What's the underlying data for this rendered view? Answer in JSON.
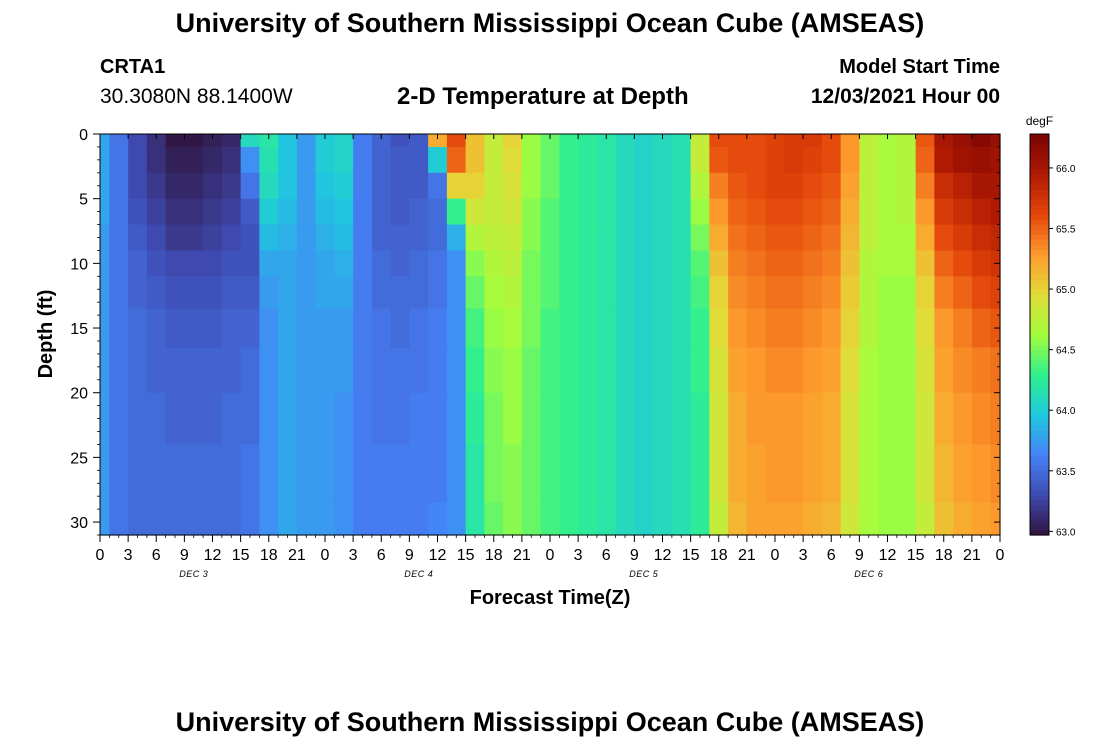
{
  "header": {
    "title": "University of Southern Mississippi Ocean Cube (AMSEAS)",
    "station_id": "CRTA1",
    "station_coords": "30.3080N  88.1400W",
    "subtitle": "2-D Temperature at Depth",
    "model_start_label": "Model Start Time",
    "model_start_value": "12/03/2021 Hour 00"
  },
  "footer": {
    "title": "University of Southern Mississippi Ocean Cube (AMSEAS)"
  },
  "colors": {
    "colormap": [
      "#30123b",
      "#3e4ab0",
      "#4682f8",
      "#1fc8de",
      "#2ff08e",
      "#a3fd3d",
      "#e2dc38",
      "#fe9b2d",
      "#e4460a",
      "#b01a03",
      "#7a0403"
    ]
  },
  "chart_data": {
    "type": "heatmap",
    "xlabel": "Forecast Time(Z)",
    "ylabel": "Depth (ft)",
    "colorbar_unit": "degF",
    "x_tick_labels": [
      "0",
      "3",
      "6",
      "9",
      "12",
      "15",
      "18",
      "21",
      "0",
      "3",
      "6",
      "9",
      "12",
      "15",
      "18",
      "21",
      "0",
      "3",
      "6",
      "9",
      "12",
      "15",
      "18",
      "21",
      "0",
      "3",
      "6",
      "9",
      "12",
      "15",
      "18",
      "21",
      "0"
    ],
    "day_labels": [
      "DEC 3",
      "DEC 4",
      "DEC 5",
      "DEC 6"
    ],
    "y_ticks": [
      0,
      5,
      10,
      15,
      20,
      25,
      30
    ],
    "ylim": [
      31,
      0
    ],
    "x_hours": [
      0,
      96
    ],
    "colorbar_ticks": [
      63.0,
      63.5,
      64.0,
      64.5,
      65.0,
      65.5,
      66.0
    ],
    "zlim": [
      62.97,
      66.28
    ],
    "depth_levels_ft": [
      0,
      2,
      4,
      6,
      8,
      10,
      12,
      15,
      18,
      22,
      26,
      31
    ],
    "time_hours": [
      0,
      2,
      4,
      6,
      8,
      10,
      12,
      14,
      16,
      18,
      20,
      22,
      24,
      26,
      28,
      30,
      32,
      34,
      36,
      38,
      40,
      42,
      44,
      46,
      48,
      50,
      52,
      54,
      56,
      58,
      60,
      62,
      64,
      66,
      68,
      70,
      72,
      74,
      76,
      78,
      80,
      82,
      84,
      86,
      88,
      90,
      92,
      94,
      96
    ],
    "temperature_degF": [
      [
        63.8,
        63.55,
        63.3,
        63.15,
        63.0,
        63.0,
        63.05,
        63.1,
        64.1,
        64.2,
        63.95,
        63.75,
        64.0,
        64.05,
        63.6,
        63.45,
        63.35,
        63.4,
        65.2,
        65.6,
        65.1,
        64.8,
        65.0,
        64.6,
        64.45,
        64.3,
        64.25,
        64.2,
        64.1,
        64.05,
        64.1,
        64.15,
        64.8,
        65.6,
        65.6,
        65.6,
        65.65,
        65.7,
        65.7,
        65.6,
        65.3,
        64.75,
        64.65,
        64.7,
        65.55,
        66.0,
        66.1,
        66.2,
        66.1
      ],
      [
        63.8,
        63.55,
        63.3,
        63.15,
        63.05,
        63.05,
        63.1,
        63.15,
        63.7,
        64.15,
        63.95,
        63.75,
        64.0,
        64.05,
        63.6,
        63.45,
        63.4,
        63.4,
        64.0,
        65.5,
        65.1,
        64.8,
        64.95,
        64.6,
        64.45,
        64.3,
        64.25,
        64.2,
        64.1,
        64.05,
        64.1,
        64.15,
        64.8,
        65.55,
        65.6,
        65.6,
        65.65,
        65.7,
        65.65,
        65.6,
        65.3,
        64.75,
        64.65,
        64.7,
        65.5,
        65.95,
        66.05,
        66.1,
        66.05
      ],
      [
        63.8,
        63.55,
        63.3,
        63.2,
        63.1,
        63.1,
        63.15,
        63.2,
        63.55,
        64.1,
        63.95,
        63.75,
        63.95,
        64.0,
        63.6,
        63.45,
        63.4,
        63.4,
        63.55,
        65.0,
        65.0,
        64.8,
        64.9,
        64.6,
        64.45,
        64.3,
        64.25,
        64.2,
        64.1,
        64.05,
        64.1,
        64.15,
        64.7,
        65.4,
        65.55,
        65.6,
        65.65,
        65.65,
        65.6,
        65.55,
        65.25,
        64.75,
        64.65,
        64.7,
        65.4,
        65.8,
        65.9,
        66.0,
        66.0
      ],
      [
        63.8,
        63.55,
        63.35,
        63.25,
        63.15,
        63.15,
        63.2,
        63.25,
        63.4,
        64.0,
        63.9,
        63.75,
        63.9,
        63.95,
        63.6,
        63.45,
        63.4,
        63.45,
        63.5,
        64.3,
        64.85,
        64.8,
        64.85,
        64.55,
        64.4,
        64.3,
        64.25,
        64.2,
        64.1,
        64.05,
        64.1,
        64.15,
        64.6,
        65.3,
        65.5,
        65.55,
        65.6,
        65.6,
        65.55,
        65.5,
        65.2,
        64.75,
        64.65,
        64.7,
        65.3,
        65.7,
        65.8,
        65.9,
        65.95
      ],
      [
        63.75,
        63.55,
        63.4,
        63.3,
        63.2,
        63.2,
        63.25,
        63.3,
        63.35,
        63.9,
        63.85,
        63.75,
        63.85,
        63.9,
        63.6,
        63.45,
        63.45,
        63.45,
        63.5,
        63.85,
        64.7,
        64.75,
        64.8,
        64.55,
        64.4,
        64.3,
        64.25,
        64.2,
        64.1,
        64.05,
        64.1,
        64.15,
        64.5,
        65.2,
        65.45,
        65.5,
        65.55,
        65.55,
        65.5,
        65.45,
        65.15,
        64.75,
        64.65,
        64.65,
        65.2,
        65.6,
        65.7,
        65.8,
        65.85
      ],
      [
        63.75,
        63.55,
        63.45,
        63.35,
        63.3,
        63.3,
        63.3,
        63.35,
        63.35,
        63.8,
        63.8,
        63.75,
        63.8,
        63.85,
        63.6,
        63.5,
        63.45,
        63.5,
        63.55,
        63.7,
        64.55,
        64.7,
        64.75,
        64.5,
        64.4,
        64.3,
        64.25,
        64.2,
        64.1,
        64.05,
        64.1,
        64.15,
        64.4,
        65.1,
        65.4,
        65.45,
        65.5,
        65.5,
        65.45,
        65.4,
        65.1,
        64.7,
        64.65,
        64.65,
        65.1,
        65.5,
        65.6,
        65.7,
        65.75
      ],
      [
        63.75,
        63.55,
        63.45,
        63.4,
        63.35,
        63.35,
        63.35,
        63.4,
        63.4,
        63.75,
        63.8,
        63.75,
        63.8,
        63.8,
        63.6,
        63.5,
        63.5,
        63.5,
        63.55,
        63.7,
        64.45,
        64.65,
        64.7,
        64.5,
        64.4,
        64.3,
        64.25,
        64.2,
        64.1,
        64.05,
        64.1,
        64.15,
        64.35,
        65.0,
        65.35,
        65.4,
        65.45,
        65.45,
        65.4,
        65.35,
        65.05,
        64.7,
        64.6,
        64.6,
        65.0,
        65.4,
        65.5,
        65.6,
        65.65
      ],
      [
        63.75,
        63.55,
        63.5,
        63.45,
        63.4,
        63.4,
        63.4,
        63.45,
        63.45,
        63.7,
        63.8,
        63.75,
        63.75,
        63.75,
        63.6,
        63.55,
        63.5,
        63.55,
        63.6,
        63.7,
        64.35,
        64.6,
        64.65,
        64.5,
        64.35,
        64.3,
        64.25,
        64.2,
        64.1,
        64.05,
        64.1,
        64.15,
        64.3,
        64.95,
        65.3,
        65.35,
        65.4,
        65.4,
        65.35,
        65.3,
        65.0,
        64.7,
        64.6,
        64.6,
        64.95,
        65.3,
        65.4,
        65.5,
        65.55
      ],
      [
        63.75,
        63.55,
        63.5,
        63.45,
        63.45,
        63.45,
        63.45,
        63.45,
        63.5,
        63.7,
        63.8,
        63.75,
        63.75,
        63.75,
        63.6,
        63.55,
        63.55,
        63.55,
        63.6,
        63.7,
        64.3,
        64.55,
        64.6,
        64.45,
        64.35,
        64.3,
        64.25,
        64.2,
        64.1,
        64.05,
        64.1,
        64.15,
        64.3,
        64.9,
        65.25,
        65.3,
        65.35,
        65.35,
        65.3,
        65.25,
        64.95,
        64.65,
        64.6,
        64.6,
        64.9,
        65.25,
        65.35,
        65.4,
        65.45
      ],
      [
        63.75,
        63.55,
        63.5,
        63.5,
        63.45,
        63.45,
        63.45,
        63.5,
        63.5,
        63.7,
        63.8,
        63.75,
        63.75,
        63.7,
        63.6,
        63.55,
        63.55,
        63.6,
        63.6,
        63.7,
        64.25,
        64.5,
        64.6,
        64.45,
        64.35,
        64.3,
        64.25,
        64.2,
        64.1,
        64.05,
        64.1,
        64.15,
        64.25,
        64.85,
        65.2,
        65.3,
        65.3,
        65.3,
        65.25,
        65.2,
        64.9,
        64.65,
        64.6,
        64.6,
        64.85,
        65.2,
        65.3,
        65.35,
        65.4
      ],
      [
        63.75,
        63.55,
        63.5,
        63.5,
        63.5,
        63.5,
        63.5,
        63.5,
        63.55,
        63.7,
        63.8,
        63.75,
        63.75,
        63.7,
        63.6,
        63.6,
        63.6,
        63.6,
        63.6,
        63.7,
        64.2,
        64.5,
        64.55,
        64.45,
        64.35,
        64.3,
        64.25,
        64.2,
        64.1,
        64.05,
        64.1,
        64.15,
        64.25,
        64.85,
        65.2,
        65.25,
        65.3,
        65.3,
        65.25,
        65.2,
        64.9,
        64.65,
        64.6,
        64.6,
        64.85,
        65.15,
        65.25,
        65.3,
        65.35
      ],
      [
        63.75,
        63.55,
        63.5,
        63.5,
        63.5,
        63.5,
        63.5,
        63.5,
        63.55,
        63.7,
        63.8,
        63.75,
        63.75,
        63.7,
        63.6,
        63.6,
        63.6,
        63.6,
        63.65,
        63.7,
        64.2,
        64.45,
        64.55,
        64.45,
        64.35,
        64.3,
        64.25,
        64.2,
        64.1,
        64.05,
        64.1,
        64.15,
        64.25,
        64.8,
        65.15,
        65.25,
        65.25,
        65.25,
        65.2,
        65.15,
        64.85,
        64.65,
        64.6,
        64.6,
        64.8,
        65.1,
        65.2,
        65.25,
        65.3
      ]
    ]
  }
}
